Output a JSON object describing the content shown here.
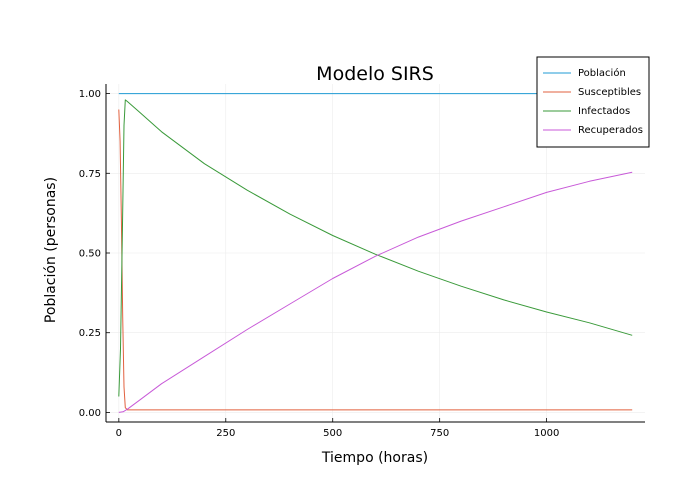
{
  "chart_data": {
    "type": "line",
    "title": "Modelo SIRS",
    "xlabel": "Tiempo (horas)",
    "ylabel": "Población (personas)",
    "xlim": [
      -30,
      1230
    ],
    "ylim": [
      -0.03,
      1.03
    ],
    "x_ticks": [
      0,
      250,
      500,
      750,
      1000
    ],
    "x_tick_labels": [
      "0",
      "250",
      "500",
      "750",
      "1000"
    ],
    "y_ticks": [
      0,
      0.25,
      0.5,
      0.75,
      1.0
    ],
    "y_tick_labels": [
      "0.00",
      "0.25",
      "0.50",
      "0.75",
      "1.00"
    ],
    "grid": true,
    "legend_position": "top-right",
    "series": [
      {
        "name": "Población",
        "color": "#1f9bd4",
        "x": [
          0,
          200,
          400,
          600,
          800,
          1000,
          1200
        ],
        "y": [
          1.0,
          1.0,
          1.0,
          1.0,
          1.0,
          1.0,
          1.0
        ]
      },
      {
        "name": "Susceptibles",
        "color": "#e2613f",
        "x": [
          0,
          3,
          6,
          9,
          12,
          15,
          20,
          50,
          200,
          600,
          1200
        ],
        "y": [
          0.95,
          0.85,
          0.6,
          0.3,
          0.08,
          0.015,
          0.008,
          0.008,
          0.008,
          0.008,
          0.008
        ]
      },
      {
        "name": "Infectados",
        "color": "#3a9a3a",
        "x": [
          0,
          4,
          8,
          12,
          15,
          20,
          50,
          100,
          200,
          300,
          400,
          500,
          600,
          700,
          800,
          900,
          1000,
          1100,
          1200
        ],
        "y": [
          0.05,
          0.2,
          0.55,
          0.9,
          0.98,
          0.975,
          0.94,
          0.88,
          0.78,
          0.697,
          0.622,
          0.555,
          0.496,
          0.443,
          0.396,
          0.353,
          0.315,
          0.281,
          0.242
        ]
      },
      {
        "name": "Recuperados",
        "color": "#c85ad8",
        "x": [
          0,
          10,
          20,
          50,
          100,
          200,
          300,
          400,
          500,
          600,
          700,
          800,
          900,
          1000,
          1100,
          1200
        ],
        "y": [
          0.0,
          0.002,
          0.01,
          0.04,
          0.09,
          0.175,
          0.26,
          0.34,
          0.42,
          0.49,
          0.55,
          0.6,
          0.645,
          0.69,
          0.725,
          0.753
        ]
      }
    ]
  }
}
